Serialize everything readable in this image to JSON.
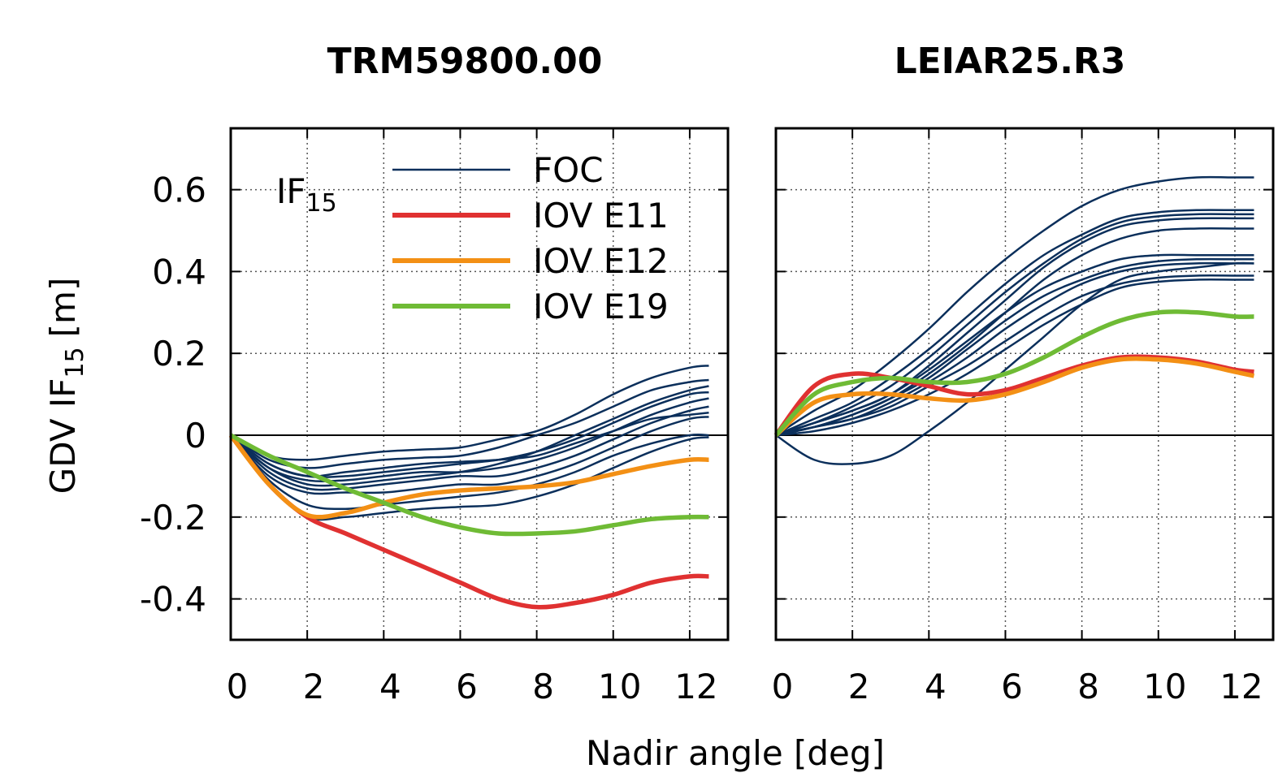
{
  "chart_data": [
    {
      "type": "line",
      "title": "TRM59800.00",
      "xlabel": "Nadir angle [deg]",
      "ylabel": {
        "text": "GDV IF",
        "sub": "15",
        "suffix": "[m]"
      },
      "annotation": {
        "text": "IF",
        "sub": "15"
      },
      "legend": "top",
      "grid": true,
      "xlim": [
        0,
        13
      ],
      "ylim": [
        -0.5,
        0.75
      ],
      "xticks": [
        0,
        2,
        4,
        6,
        8,
        10,
        12
      ],
      "yticks": [
        -0.4,
        -0.2,
        0,
        0.2,
        0.4,
        0.6
      ],
      "x": [
        0,
        1,
        2,
        3,
        4,
        5,
        6,
        7,
        8,
        9,
        10,
        11,
        12,
        12.5
      ],
      "series": [
        {
          "name": "FOC",
          "color": "#0b2f5b",
          "values": [
            0,
            -0.12,
            -0.2,
            -0.2,
            -0.19,
            -0.18,
            -0.175,
            -0.17,
            -0.15,
            -0.12,
            -0.08,
            -0.04,
            -0.01,
            -0.005
          ]
        },
        {
          "color": "#0b2f5b",
          "values": [
            0,
            -0.08,
            -0.12,
            -0.12,
            -0.11,
            -0.1,
            -0.09,
            -0.07,
            -0.04,
            0,
            0.04,
            0.08,
            0.11,
            0.12
          ]
        },
        {
          "color": "#0b2f5b",
          "values": [
            0,
            -0.05,
            -0.06,
            -0.05,
            -0.04,
            -0.035,
            -0.03,
            -0.01,
            0.01,
            0.05,
            0.1,
            0.14,
            0.165,
            0.17
          ]
        },
        {
          "color": "#0b2f5b",
          "values": [
            0,
            -0.06,
            -0.08,
            -0.07,
            -0.06,
            -0.055,
            -0.05,
            -0.03,
            0,
            0.03,
            0.07,
            0.11,
            0.13,
            0.135
          ]
        },
        {
          "color": "#0b2f5b",
          "values": [
            0,
            -0.07,
            -0.1,
            -0.1,
            -0.09,
            -0.08,
            -0.07,
            -0.06,
            -0.04,
            -0.01,
            0.03,
            0.07,
            0.1,
            0.105
          ]
        },
        {
          "color": "#0b2f5b",
          "values": [
            0,
            -0.08,
            -0.11,
            -0.11,
            -0.1,
            -0.09,
            -0.09,
            -0.08,
            -0.06,
            -0.03,
            0.01,
            0.05,
            0.08,
            0.09
          ]
        },
        {
          "color": "#0b2f5b",
          "values": [
            0,
            -0.09,
            -0.13,
            -0.13,
            -0.12,
            -0.11,
            -0.1,
            -0.1,
            -0.08,
            -0.05,
            -0.01,
            0.03,
            0.06,
            0.07
          ]
        },
        {
          "color": "#0b2f5b",
          "values": [
            0,
            -0.07,
            -0.1,
            -0.09,
            -0.08,
            -0.07,
            -0.065,
            -0.06,
            -0.05,
            -0.02,
            0.01,
            0.04,
            0.05,
            0.055
          ]
        },
        {
          "color": "#0b2f5b",
          "values": [
            0,
            -0.1,
            -0.14,
            -0.14,
            -0.14,
            -0.13,
            -0.12,
            -0.12,
            -0.1,
            -0.07,
            -0.03,
            0.01,
            0.04,
            0.045
          ]
        },
        {
          "color": "#0b2f5b",
          "values": [
            0,
            -0.11,
            -0.17,
            -0.18,
            -0.17,
            -0.16,
            -0.15,
            -0.14,
            -0.12,
            -0.09,
            -0.05,
            -0.02,
            0,
            0
          ]
        },
        {
          "name": "IOV E11",
          "color": "#e03131",
          "values": [
            0,
            -0.12,
            -0.2,
            -0.24,
            -0.28,
            -0.32,
            -0.36,
            -0.4,
            -0.42,
            -0.41,
            -0.39,
            -0.36,
            -0.345,
            -0.345
          ]
        },
        {
          "name": "IOV E12",
          "color": "#f39015",
          "values": [
            0,
            -0.12,
            -0.195,
            -0.19,
            -0.165,
            -0.145,
            -0.135,
            -0.13,
            -0.125,
            -0.115,
            -0.095,
            -0.075,
            -0.06,
            -0.06
          ]
        },
        {
          "name": "IOV E19",
          "color": "#6fbb35",
          "values": [
            0,
            -0.05,
            -0.09,
            -0.13,
            -0.165,
            -0.2,
            -0.225,
            -0.24,
            -0.24,
            -0.235,
            -0.22,
            -0.205,
            -0.2,
            -0.2
          ]
        }
      ]
    },
    {
      "type": "line",
      "title": "LEIAR25.R3",
      "grid": true,
      "ytick_labels": false,
      "xlim": [
        0,
        13
      ],
      "ylim": [
        -0.5,
        0.75
      ],
      "xticks": [
        0,
        2,
        4,
        6,
        8,
        10,
        12
      ],
      "yticks": [
        -0.4,
        -0.2,
        0,
        0.2,
        0.4,
        0.6
      ],
      "x": [
        0,
        1,
        2,
        3,
        4,
        5,
        6,
        7,
        8,
        9,
        10,
        11,
        12,
        12.5
      ],
      "series": [
        {
          "color": "#0b2f5b",
          "values": [
            0,
            -0.06,
            -0.07,
            -0.05,
            0.01,
            0.08,
            0.16,
            0.24,
            0.32,
            0.38,
            0.4,
            0.41,
            0.42,
            0.42
          ]
        },
        {
          "color": "#0b2f5b",
          "values": [
            0,
            0.06,
            0.11,
            0.18,
            0.26,
            0.35,
            0.43,
            0.5,
            0.56,
            0.6,
            0.62,
            0.63,
            0.63,
            0.63
          ]
        },
        {
          "color": "#0b2f5b",
          "values": [
            0,
            0.04,
            0.08,
            0.14,
            0.21,
            0.29,
            0.37,
            0.44,
            0.49,
            0.53,
            0.545,
            0.55,
            0.55,
            0.55
          ]
        },
        {
          "color": "#0b2f5b",
          "values": [
            0,
            0.03,
            0.07,
            0.12,
            0.19,
            0.27,
            0.35,
            0.42,
            0.48,
            0.52,
            0.535,
            0.54,
            0.54,
            0.54
          ]
        },
        {
          "color": "#0b2f5b",
          "values": [
            0,
            0.03,
            0.06,
            0.1,
            0.17,
            0.25,
            0.33,
            0.41,
            0.47,
            0.51,
            0.525,
            0.53,
            0.53,
            0.53
          ]
        },
        {
          "color": "#0b2f5b",
          "values": [
            0,
            0.02,
            0.05,
            0.09,
            0.15,
            0.22,
            0.3,
            0.38,
            0.44,
            0.48,
            0.5,
            0.505,
            0.505,
            0.505
          ]
        },
        {
          "color": "#0b2f5b",
          "values": [
            0,
            0.03,
            0.06,
            0.1,
            0.16,
            0.23,
            0.3,
            0.36,
            0.4,
            0.43,
            0.44,
            0.44,
            0.44,
            0.44
          ]
        },
        {
          "color": "#0b2f5b",
          "values": [
            0,
            0.02,
            0.05,
            0.09,
            0.14,
            0.21,
            0.28,
            0.34,
            0.38,
            0.41,
            0.425,
            0.43,
            0.43,
            0.43
          ]
        },
        {
          "color": "#0b2f5b",
          "values": [
            0,
            0.02,
            0.04,
            0.08,
            0.13,
            0.19,
            0.26,
            0.32,
            0.37,
            0.4,
            0.415,
            0.42,
            0.42,
            0.42
          ]
        },
        {
          "color": "#0b2f5b",
          "values": [
            0,
            0.02,
            0.04,
            0.07,
            0.12,
            0.17,
            0.23,
            0.29,
            0.34,
            0.37,
            0.385,
            0.39,
            0.39,
            0.39
          ]
        },
        {
          "color": "#0b2f5b",
          "values": [
            0,
            0.01,
            0.03,
            0.06,
            0.1,
            0.15,
            0.21,
            0.27,
            0.32,
            0.36,
            0.375,
            0.38,
            0.38,
            0.38
          ]
        },
        {
          "color": "#e03131",
          "values": [
            0,
            0.12,
            0.15,
            0.14,
            0.12,
            0.1,
            0.11,
            0.14,
            0.17,
            0.19,
            0.19,
            0.18,
            0.16,
            0.155
          ]
        },
        {
          "color": "#f39015",
          "values": [
            0,
            0.08,
            0.1,
            0.1,
            0.09,
            0.085,
            0.1,
            0.13,
            0.165,
            0.185,
            0.185,
            0.175,
            0.155,
            0.145
          ]
        },
        {
          "color": "#6fbb35",
          "values": [
            0,
            0.1,
            0.13,
            0.14,
            0.13,
            0.13,
            0.15,
            0.19,
            0.24,
            0.28,
            0.3,
            0.3,
            0.29,
            0.29
          ]
        }
      ]
    }
  ]
}
